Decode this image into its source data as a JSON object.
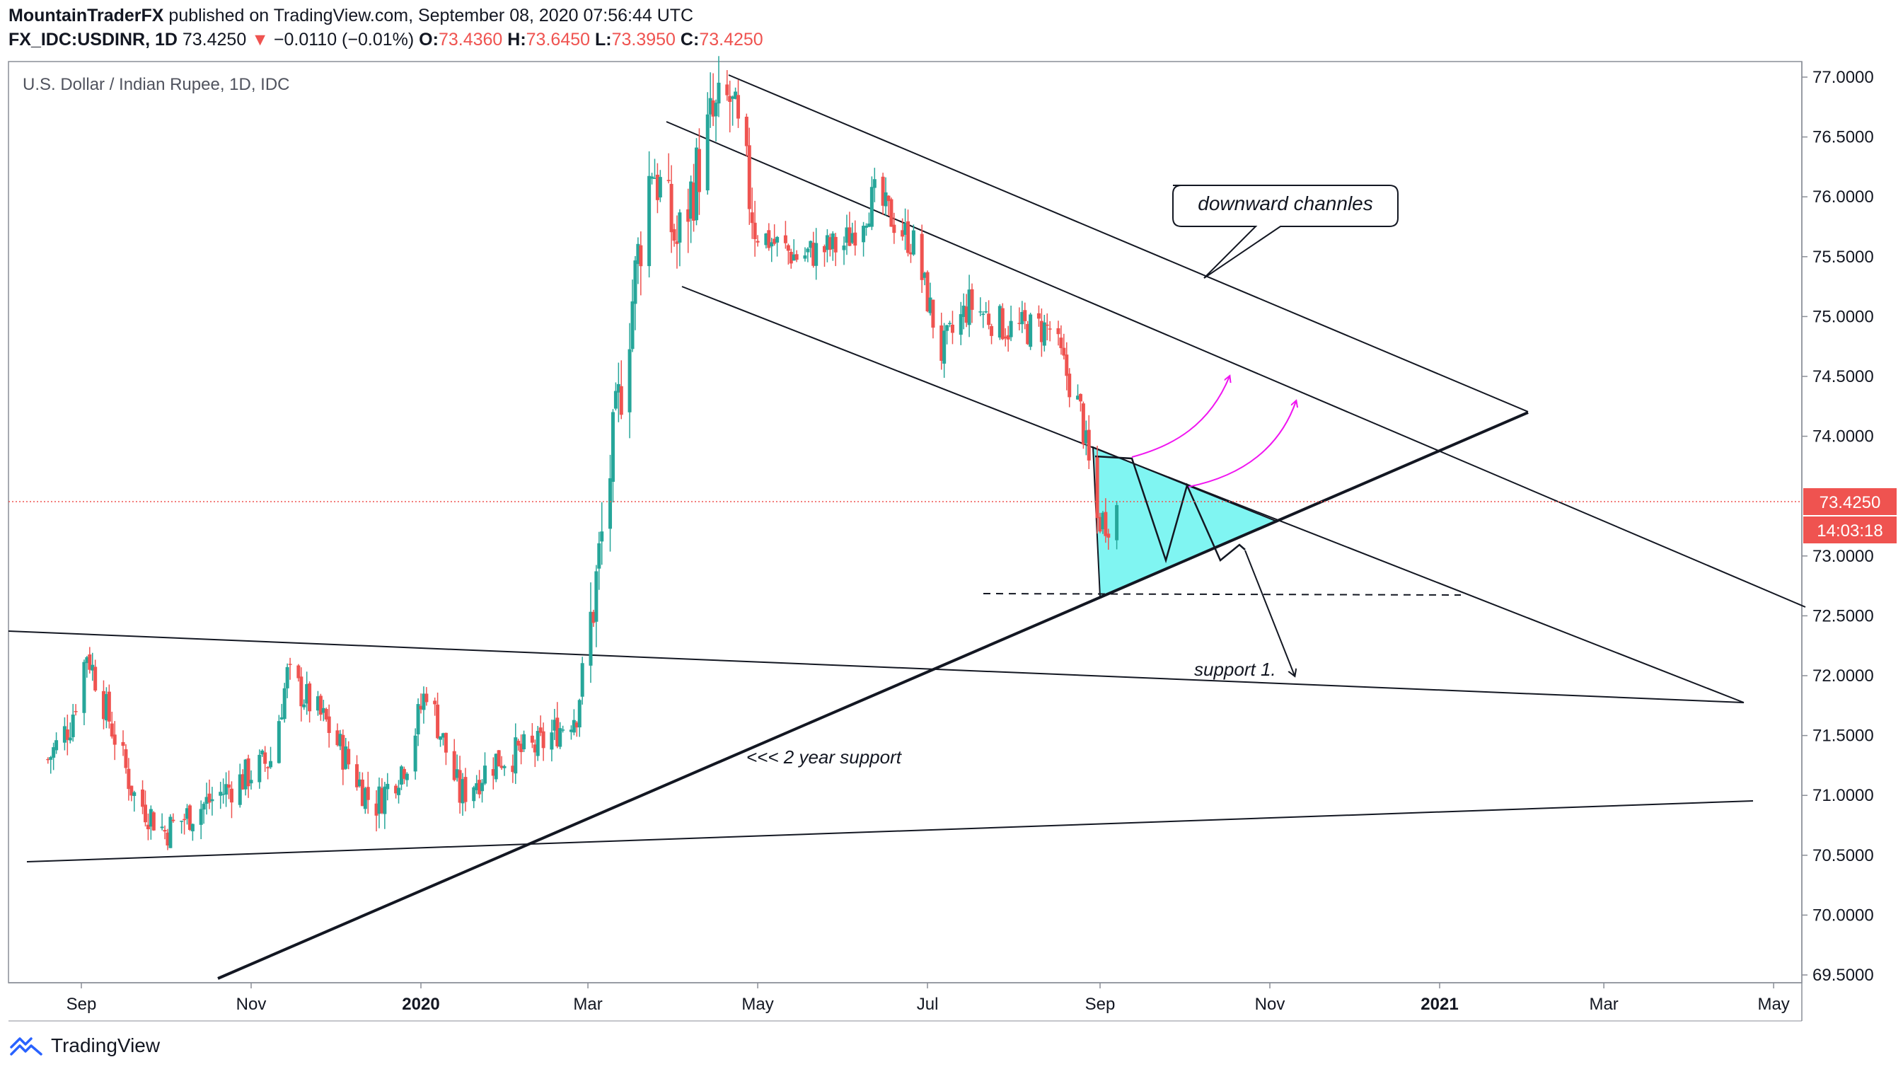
{
  "header": {
    "author": "MountainTraderFX",
    "published": "published on TradingView.com, September 08, 2020 07:56:44 UTC",
    "symbol": "FX_IDC:USDINR, 1D",
    "last": "73.4250",
    "arrow": "▼",
    "change": "−0.0110 (−0.01%)",
    "o_label": "O:",
    "o": "73.4360",
    "h_label": "H:",
    "h": "73.6450",
    "l_label": "L:",
    "l": "73.3950",
    "c_label": "C:",
    "c": "73.4250"
  },
  "chart_data": {
    "type": "candlestick",
    "title": "U.S. Dollar / Indian Rupee, 1D, IDC",
    "x_tick_labels": [
      "Sep",
      "Nov",
      "2020",
      "Mar",
      "May",
      "Jul",
      "Sep",
      "Nov",
      "2021",
      "Mar",
      "May"
    ],
    "y_tick_labels": [
      "77.0000",
      "76.5000",
      "76.0000",
      "75.5000",
      "75.0000",
      "74.5000",
      "74.0000",
      "73.0000",
      "72.5000",
      "72.0000",
      "71.5000",
      "71.0000",
      "70.5000",
      "70.0000",
      "69.5000"
    ],
    "ylim": [
      69.4,
      77.15
    ],
    "last_price": 73.425,
    "price_label": "73.4250",
    "countdown_label": "14:03:18",
    "price_series_keypoints": [
      {
        "date": "2019-08-20",
        "price": 71.3
      },
      {
        "date": "2019-08-28",
        "price": 71.6
      },
      {
        "date": "2019-09-03",
        "price": 72.2
      },
      {
        "date": "2019-09-20",
        "price": 71.0
      },
      {
        "date": "2019-10-01",
        "price": 70.7
      },
      {
        "date": "2019-10-20",
        "price": 71.0
      },
      {
        "date": "2019-11-08",
        "price": 71.3
      },
      {
        "date": "2019-11-14",
        "price": 72.0
      },
      {
        "date": "2019-11-28",
        "price": 71.6
      },
      {
        "date": "2019-12-15",
        "price": 70.9
      },
      {
        "date": "2019-12-27",
        "price": 71.3
      },
      {
        "date": "2020-01-03",
        "price": 71.9
      },
      {
        "date": "2020-01-15",
        "price": 71.0
      },
      {
        "date": "2020-01-28",
        "price": 71.3
      },
      {
        "date": "2020-02-12",
        "price": 71.4
      },
      {
        "date": "2020-02-26",
        "price": 71.7
      },
      {
        "date": "2020-03-03",
        "price": 72.6
      },
      {
        "date": "2020-03-10",
        "price": 73.9
      },
      {
        "date": "2020-03-19",
        "price": 75.5
      },
      {
        "date": "2020-03-24",
        "price": 76.3
      },
      {
        "date": "2020-04-02",
        "price": 75.6
      },
      {
        "date": "2020-04-14",
        "price": 76.6
      },
      {
        "date": "2020-04-21",
        "price": 76.8
      },
      {
        "date": "2020-05-01",
        "price": 75.7
      },
      {
        "date": "2020-05-15",
        "price": 75.5
      },
      {
        "date": "2020-06-01",
        "price": 75.6
      },
      {
        "date": "2020-06-12",
        "price": 76.0
      },
      {
        "date": "2020-06-26",
        "price": 75.6
      },
      {
        "date": "2020-07-06",
        "price": 74.7
      },
      {
        "date": "2020-07-16",
        "price": 75.1
      },
      {
        "date": "2020-07-30",
        "price": 74.9
      },
      {
        "date": "2020-08-14",
        "price": 74.9
      },
      {
        "date": "2020-08-25",
        "price": 74.2
      },
      {
        "date": "2020-08-31",
        "price": 73.3
      },
      {
        "date": "2020-09-04",
        "price": 73.3
      },
      {
        "date": "2020-09-07",
        "price": 73.43
      }
    ],
    "annotations": {
      "callout": "downward channles",
      "support1": "support 1.",
      "two_year_support": "<<< 2 year support"
    },
    "grid": false,
    "legend": "none"
  },
  "colors": {
    "up": "#26a69a",
    "down": "#ef5350",
    "triangle": "#80f5f2",
    "arrows": "#f015f0",
    "price_line": "#ef5350",
    "text": "#131722"
  },
  "footer": {
    "brand": "TradingView",
    "logo_icon": "tradingview-logo-icon"
  }
}
